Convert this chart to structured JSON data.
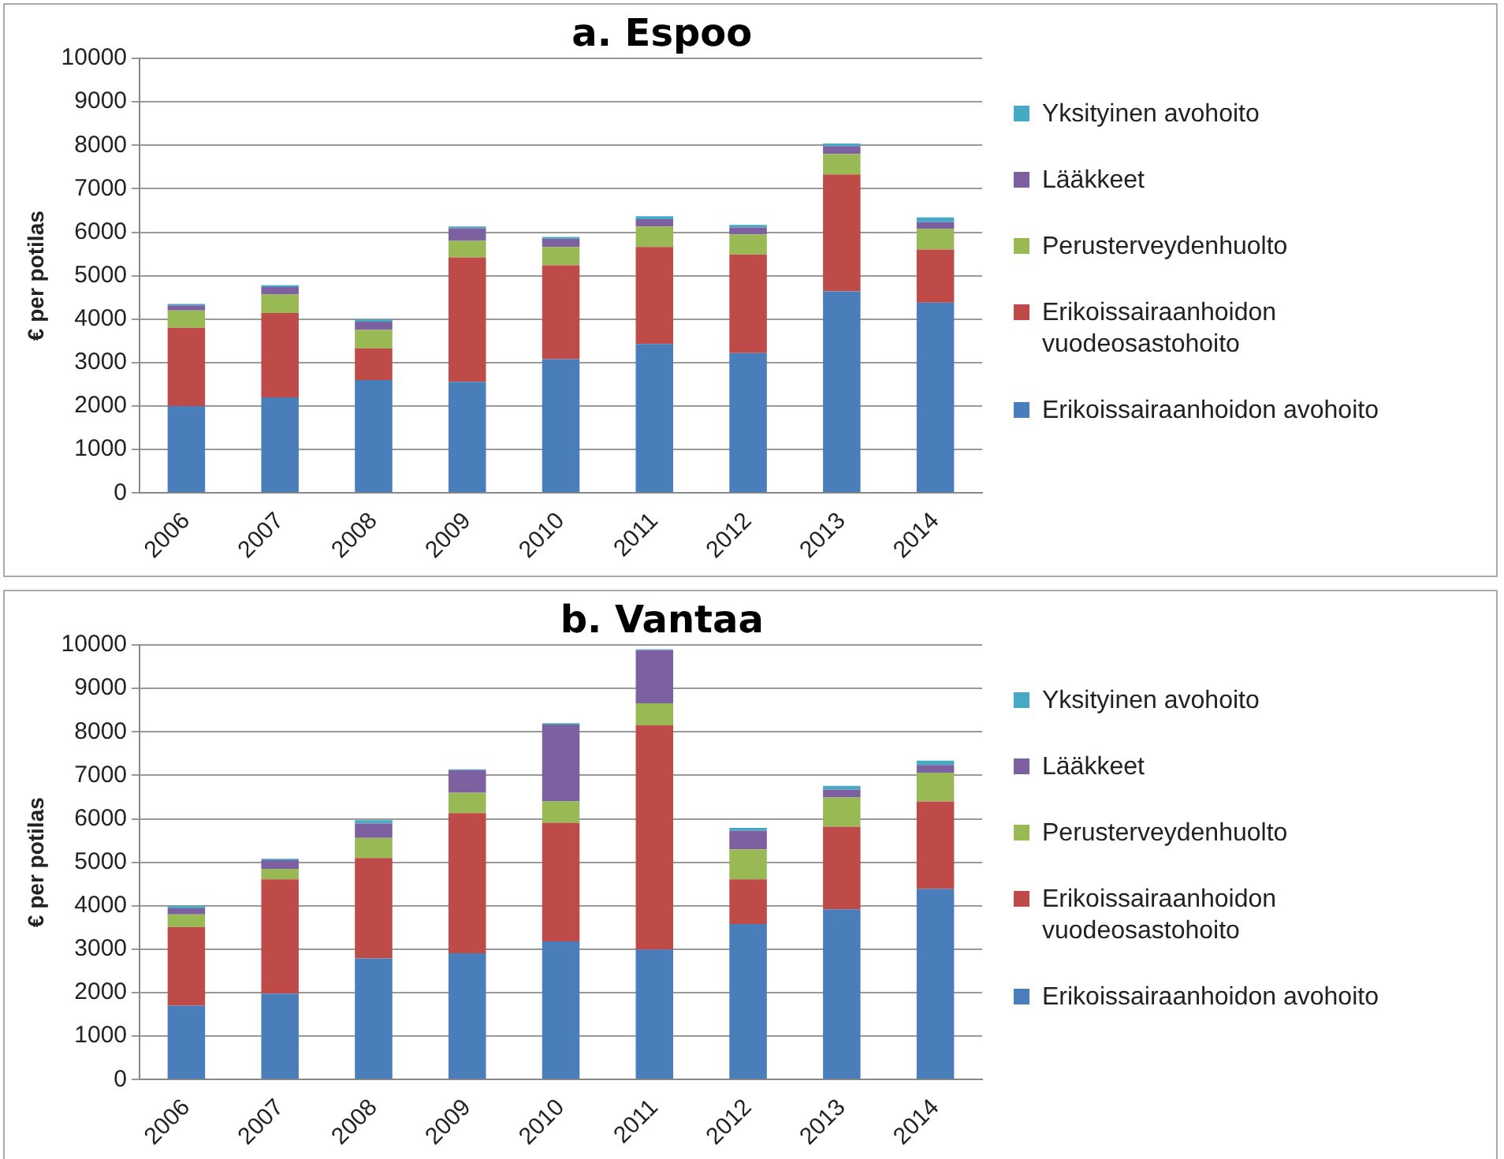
{
  "chart_data": [
    {
      "type": "bar",
      "title": "a. Espoo",
      "ylabel": "€ per potilas",
      "stacked": true,
      "grid": "y",
      "legend": "right",
      "categories": [
        "2006",
        "2007",
        "2008",
        "2009",
        "2010",
        "2011",
        "2012",
        "2013",
        "2014"
      ],
      "ylim": [
        0,
        10000
      ],
      "yticks": [
        0,
        1000,
        2000,
        3000,
        4000,
        5000,
        6000,
        7000,
        8000,
        9000,
        10000
      ],
      "series": [
        {
          "name": "Erikoissairaanhoidon avohoito",
          "color": "#4a7ebb",
          "values": [
            2000,
            2200,
            2600,
            2560,
            3080,
            3430,
            3220,
            4640,
            4380
          ]
        },
        {
          "name": "Erikoissairaanhoidon vuodeosastohoito",
          "color": "#be4b48",
          "values": [
            1800,
            1940,
            730,
            2860,
            2160,
            2230,
            2270,
            2690,
            1220
          ]
        },
        {
          "name": "Perusterveydenhuolto",
          "color": "#98b954",
          "values": [
            400,
            430,
            420,
            380,
            420,
            470,
            460,
            470,
            480
          ]
        },
        {
          "name": "Lääkkeet",
          "color": "#7d60a0",
          "values": [
            120,
            170,
            190,
            290,
            190,
            170,
            160,
            180,
            150
          ]
        },
        {
          "name": "Yksityinen avohoito",
          "color": "#46aac5",
          "values": [
            30,
            40,
            50,
            40,
            40,
            70,
            60,
            60,
            110
          ]
        }
      ]
    },
    {
      "type": "bar",
      "title": "b. Vantaa",
      "ylabel": "€ per potilas",
      "stacked": true,
      "grid": "y",
      "legend": "right",
      "categories": [
        "2006",
        "2007",
        "2008",
        "2009",
        "2010",
        "2011",
        "2012",
        "2013",
        "2014"
      ],
      "ylim": [
        0,
        10000
      ],
      "yticks": [
        0,
        1000,
        2000,
        3000,
        4000,
        5000,
        6000,
        7000,
        8000,
        9000,
        10000
      ],
      "series": [
        {
          "name": "Erikoissairaanhoidon avohoito",
          "color": "#4a7ebb",
          "values": [
            1700,
            1980,
            2790,
            2910,
            3180,
            2990,
            3580,
            3920,
            4390
          ]
        },
        {
          "name": "Erikoissairaanhoidon vuodeosastohoito",
          "color": "#be4b48",
          "values": [
            1810,
            2630,
            2310,
            3220,
            2730,
            5160,
            1030,
            1900,
            2010
          ]
        },
        {
          "name": "Perusterveydenhuolto",
          "color": "#98b954",
          "values": [
            290,
            240,
            460,
            470,
            490,
            510,
            690,
            670,
            660
          ]
        },
        {
          "name": "Lääkkeet",
          "color": "#7d60a0",
          "values": [
            140,
            200,
            330,
            520,
            1770,
            1220,
            430,
            180,
            180
          ]
        },
        {
          "name": "Yksityinen avohoito",
          "color": "#46aac5",
          "values": [
            50,
            30,
            80,
            20,
            30,
            20,
            60,
            90,
            100
          ]
        }
      ]
    }
  ]
}
